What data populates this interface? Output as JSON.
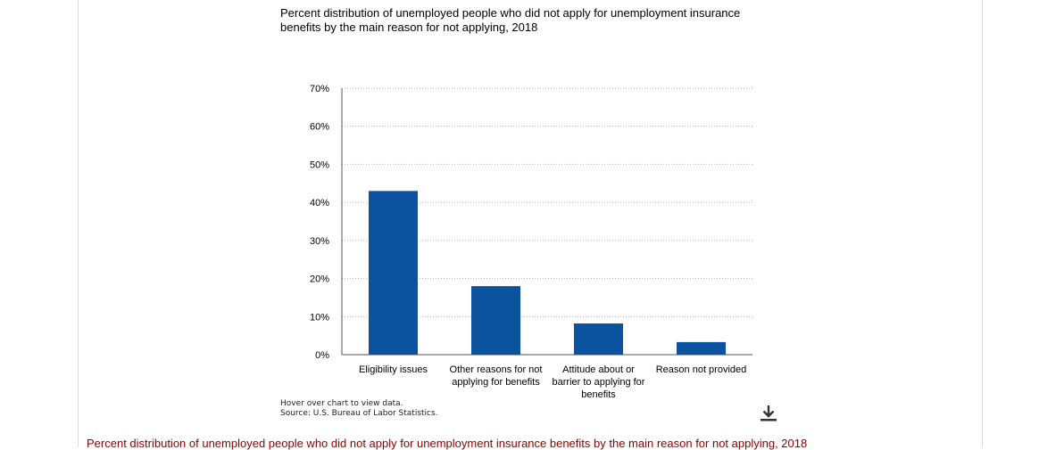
{
  "chart_data": {
    "type": "bar",
    "title": "Percent distribution of unemployed people who did not apply for unemployment insurance benefits by the main reason for not applying, 2018",
    "categories": [
      "Eligibility issues",
      "Other reasons for not applying for benefits",
      "Attitude about or barrier to applying for benefits",
      "Reason not provided"
    ],
    "category_lines": [
      [
        "Eligibility issues"
      ],
      [
        "Other reasons for not",
        "applying for benefits"
      ],
      [
        "Attitude about or",
        "barrier to applying for",
        "benefits"
      ],
      [
        "Reason not provided"
      ]
    ],
    "values": [
      43,
      18,
      8.2,
      3.3
    ],
    "ylim": [
      0,
      70
    ],
    "yticks": [
      0,
      10,
      20,
      30,
      40,
      50,
      60,
      70
    ],
    "ytick_labels": [
      "0%",
      "10%",
      "20%",
      "30%",
      "40%",
      "50%",
      "60%",
      "70%"
    ],
    "grid": true,
    "bar_color": "#0b539f"
  },
  "notes": {
    "hover": "Hover over chart to view data.",
    "source": "Source: U.S. Bureau of Labor Statistics."
  },
  "icons": {
    "download": "download-icon"
  },
  "caption": "Percent distribution of unemployed people who did not apply for unemployment insurance benefits by the main reason for not applying, 2018"
}
